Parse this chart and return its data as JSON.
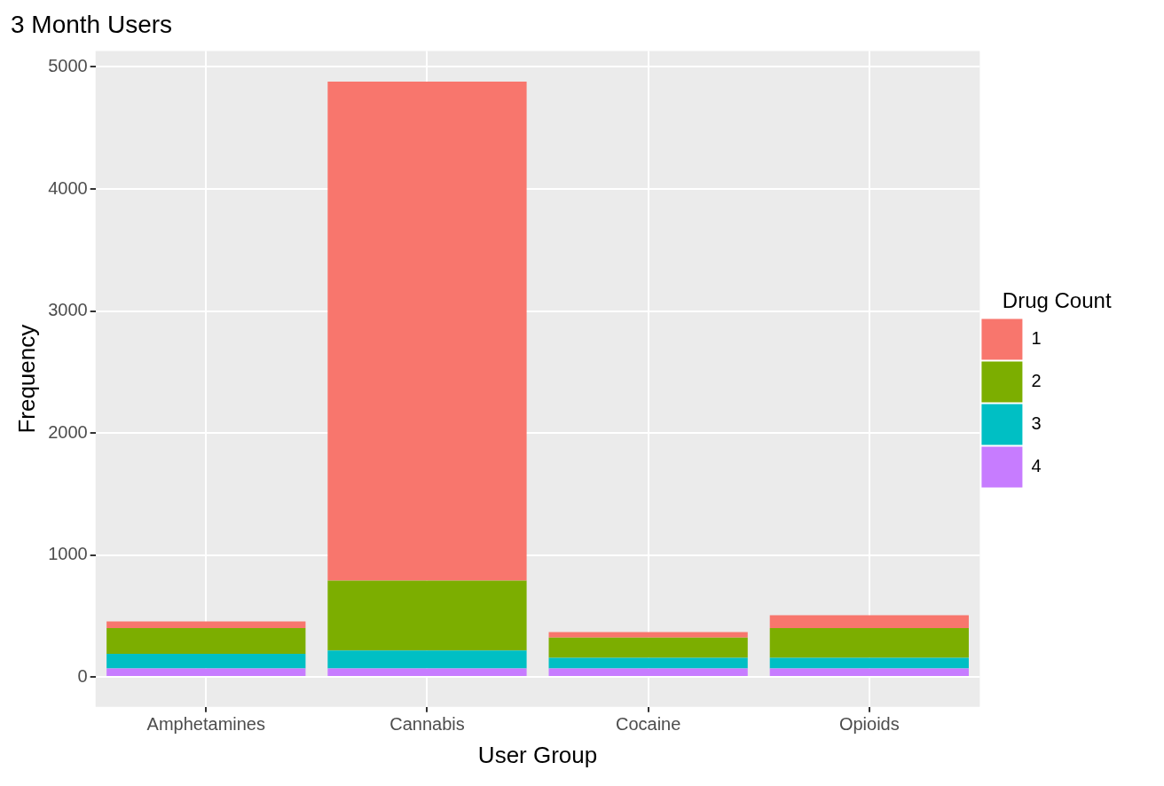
{
  "chart_data": {
    "type": "bar",
    "title": "3 Month Users",
    "xlabel": "User Group",
    "ylabel": "Frequency",
    "legend_title": "Drug Count",
    "categories": [
      "Amphetamines",
      "Cannabis",
      "Cocaine",
      "Opioids"
    ],
    "series": [
      {
        "name": "4",
        "color": "#c77cff",
        "values": [
          70,
          70,
          70,
          70
        ]
      },
      {
        "name": "3",
        "color": "#00bfc4",
        "values": [
          119,
          147,
          87,
          87
        ]
      },
      {
        "name": "2",
        "color": "#7cae00",
        "values": [
          211,
          573,
          165,
          243
        ]
      },
      {
        "name": "1",
        "color": "#f8766d",
        "values": [
          55,
          4090,
          46,
          106
        ]
      }
    ],
    "stacked": true,
    "ylim": [
      -245,
      5130
    ],
    "yticks": [
      0,
      1000,
      2000,
      3000,
      4000,
      5000
    ],
    "grid": true,
    "legend": "right"
  }
}
